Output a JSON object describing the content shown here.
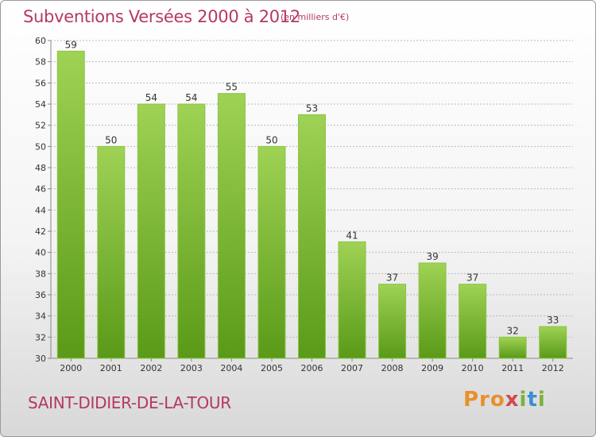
{
  "header": {
    "title": "Subventions Versées 2000 à 2012",
    "unit": "(en milliers d'€)"
  },
  "footer": {
    "commune": "SAINT-DIDIER-DE-LA-TOUR",
    "logo_text": "Proxiti"
  },
  "colors": {
    "accent": "#b5395f",
    "bar_top": "#9fd255",
    "bar_bottom": "#5a9a18",
    "grid": "#bbbbbb"
  },
  "chart_data": {
    "type": "bar",
    "title": "Subventions Versées 2000 à 2012",
    "xlabel": "",
    "ylabel": "",
    "ylim": [
      30,
      60
    ],
    "yticks": [
      30,
      32,
      34,
      36,
      38,
      40,
      42,
      44,
      46,
      48,
      50,
      52,
      54,
      56,
      58,
      60
    ],
    "grid": true,
    "categories": [
      "2000",
      "2001",
      "2002",
      "2003",
      "2004",
      "2005",
      "2006",
      "2007",
      "2008",
      "2009",
      "2010",
      "2011",
      "2012"
    ],
    "values": [
      59,
      50,
      54,
      54,
      55,
      50,
      53,
      41,
      37,
      39,
      37,
      32,
      33
    ]
  }
}
